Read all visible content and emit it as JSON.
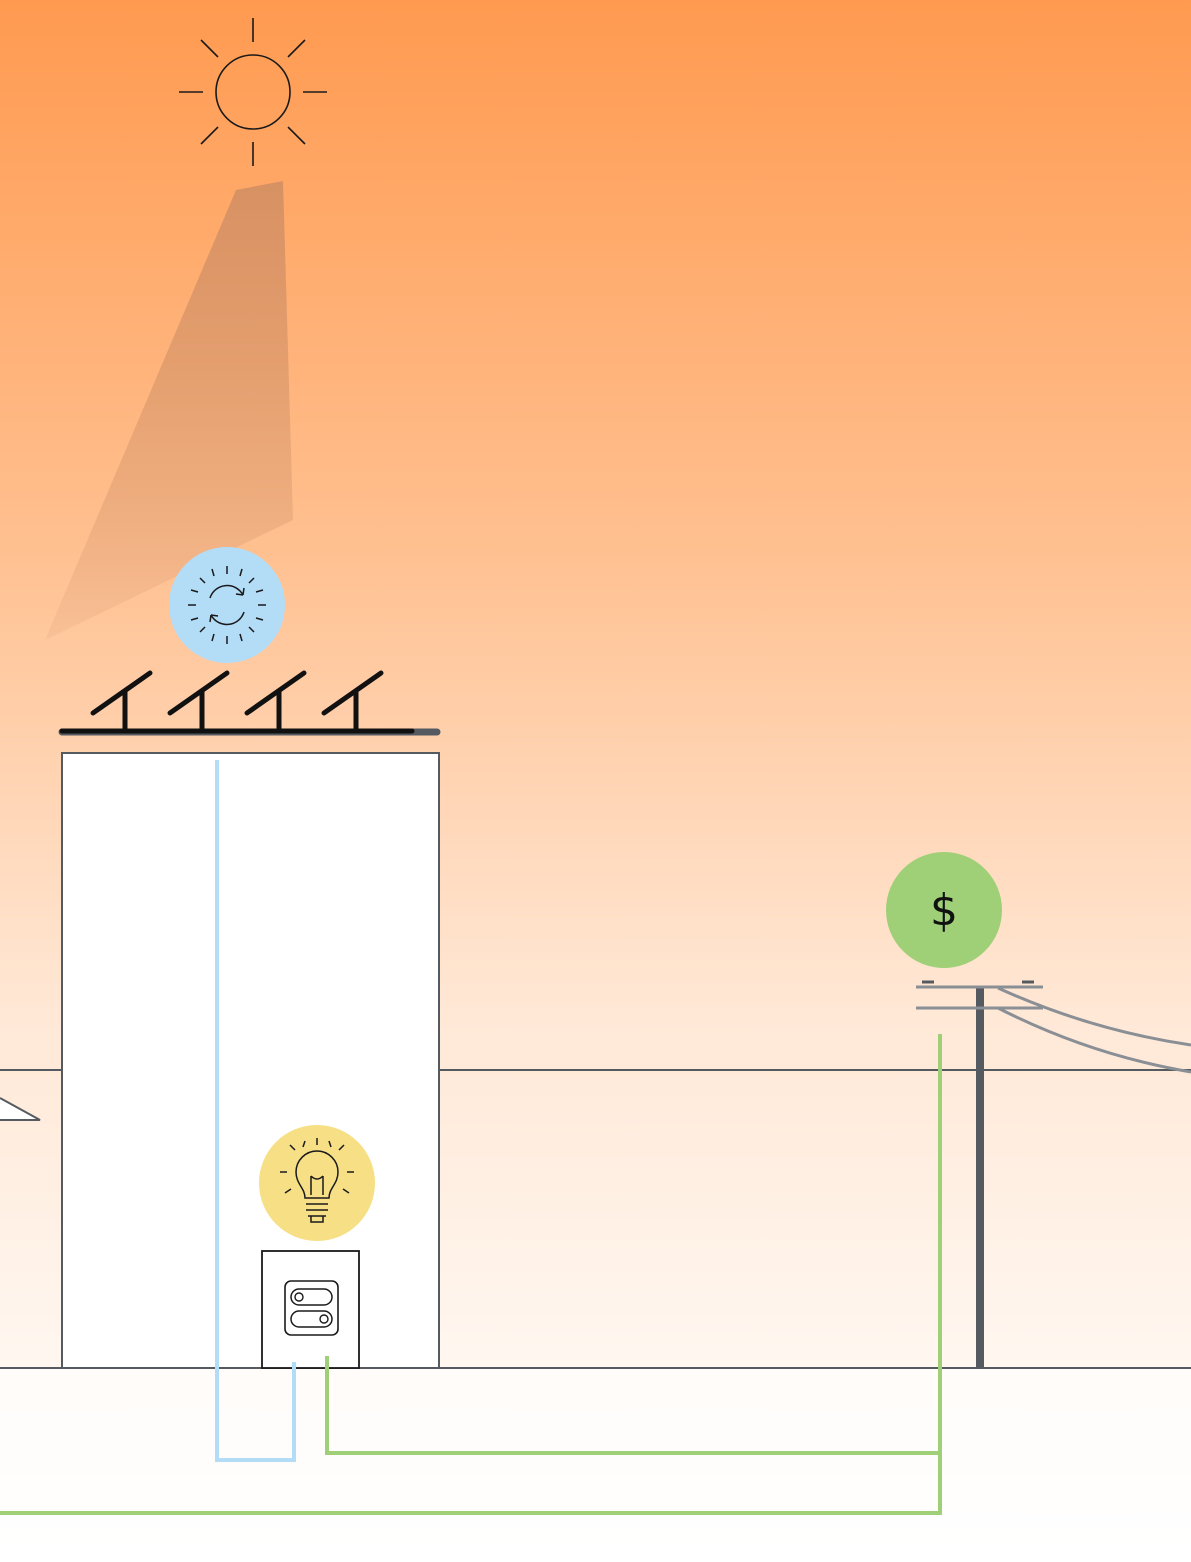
{
  "scene": {
    "sky_top_color": "#ff9a50",
    "sky_bottom_color": "#ffffff",
    "sunbeam_color": "#c98a63",
    "solar_badge_color": "#b3dcf7",
    "bulb_badge_color": "#f7df86",
    "money_badge_color": "#9fd077",
    "solar_line_color": "#b3dcf7",
    "grid_line_color": "#9fd077",
    "outline_color": "#555a60"
  },
  "icons": {
    "sun": "sun-icon",
    "solar_cycle": "solar-cycle-icon",
    "solar_panels": "solar-panel-icon",
    "lightbulb": "lightbulb-icon",
    "meter": "electric-meter-icon",
    "money": "dollar-icon",
    "utility_pole": "utility-pole-icon"
  },
  "money_badge": {
    "symbol": "$"
  }
}
